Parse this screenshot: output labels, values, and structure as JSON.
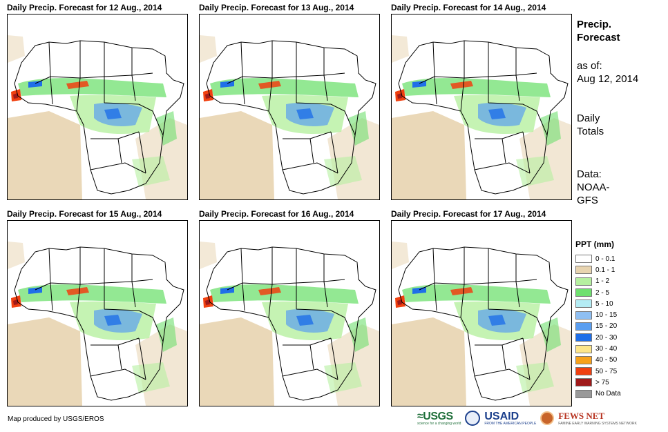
{
  "panels": [
    {
      "title": "Daily Precip. Forecast for 12 Aug., 2014"
    },
    {
      "title": "Daily Precip. Forecast for 13 Aug., 2014"
    },
    {
      "title": "Daily Precip. Forecast for 14 Aug., 2014"
    },
    {
      "title": "Daily Precip. Forecast for 15 Aug., 2014"
    },
    {
      "title": "Daily Precip. Forecast for 16 Aug., 2014"
    },
    {
      "title": "Daily Precip. Forecast for 17 Aug., 2014"
    }
  ],
  "sidebar": {
    "title_line1": "Precip.",
    "title_line2": "Forecast",
    "asof_label": "as of:",
    "asof_date": "Aug 12, 2014",
    "totals_line1": "Daily",
    "totals_line2": "Totals",
    "data_line1": "Data:",
    "data_line2": "NOAA-",
    "data_line3": "GFS"
  },
  "legend": {
    "title": "PPT (mm)",
    "items": [
      {
        "label": "0 - 0.1",
        "color": "#ffffff"
      },
      {
        "label": "0.1 - 1",
        "color": "#e8d4b0"
      },
      {
        "label": "1 - 2",
        "color": "#b6f0a0"
      },
      {
        "label": "2 - 5",
        "color": "#6fe06f"
      },
      {
        "label": "5 - 10",
        "color": "#b4ecf4"
      },
      {
        "label": "10 - 15",
        "color": "#8fbff2"
      },
      {
        "label": "15 - 20",
        "color": "#5a9ef0"
      },
      {
        "label": "20 - 30",
        "color": "#1f6fe8"
      },
      {
        "label": "30 - 40",
        "color": "#fde68a"
      },
      {
        "label": "40 - 50",
        "color": "#f7a21b"
      },
      {
        "label": "50 - 75",
        "color": "#f04010"
      },
      {
        "label": "> 75",
        "color": "#a01a1a"
      },
      {
        "label": "No Data",
        "color": "#999999"
      }
    ]
  },
  "footer": {
    "credit": "Map produced by USGS/EROS",
    "logo_usgs": "≈USGS",
    "logo_usgs_tagline": "science for a changing world",
    "logo_usaid": "USAID",
    "logo_usaid_tagline": "FROM THE AMERICAN PEOPLE",
    "logo_fews": "FEWS NET",
    "logo_fews_tagline": "FAMINE EARLY WARNING SYSTEMS NETWORK"
  }
}
